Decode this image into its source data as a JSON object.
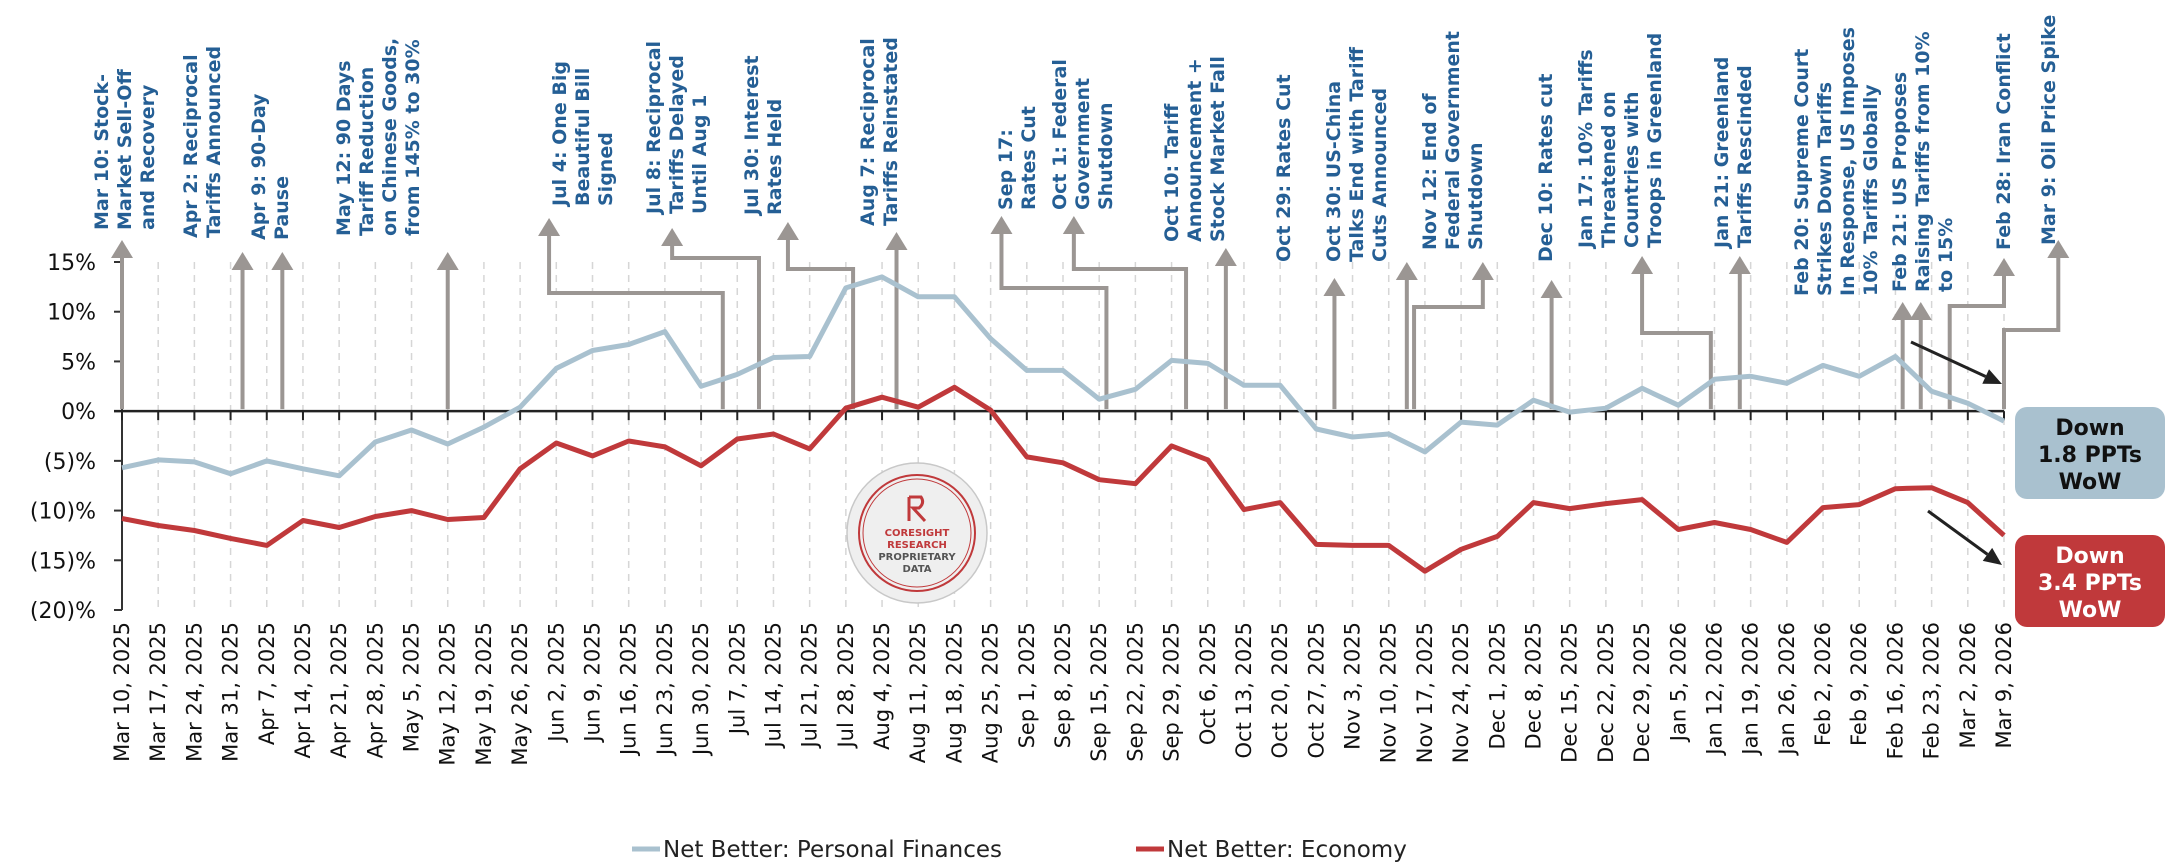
{
  "chart_data": {
    "type": "line",
    "title": "",
    "xlabel": "",
    "ylabel": "",
    "ylim": [
      -20,
      15
    ],
    "yticks": [
      15,
      10,
      5,
      0,
      -5,
      -10,
      -15,
      -20
    ],
    "ytick_labels": [
      "15%",
      "10%",
      "5%",
      "0%",
      "(5)%",
      "(10)%",
      "(15)%",
      "(20)%"
    ],
    "grid": "vertical dashed",
    "legend_position": "bottom-center",
    "x": [
      "Mar 10, 2025",
      "Mar 17, 2025",
      "Mar 24, 2025",
      "Mar 31, 2025",
      "Apr 7, 2025",
      "Apr 14, 2025",
      "Apr 21, 2025",
      "Apr 28, 2025",
      "May 5, 2025",
      "May 12, 2025",
      "May 19, 2025",
      "May 26, 2025",
      "Jun 2, 2025",
      "Jun 9, 2025",
      "Jun 16, 2025",
      "Jun 23, 2025",
      "Jun 30, 2025",
      "Jul 7, 2025",
      "Jul 14, 2025",
      "Jul 21, 2025",
      "Jul 28, 2025",
      "Aug 4, 2025",
      "Aug 11, 2025",
      "Aug 18, 2025",
      "Aug 25, 2025",
      "Sep 1, 2025",
      "Sep 8, 2025",
      "Sep 15, 2025",
      "Sep 22, 2025",
      "Sep 29, 2025",
      "Oct 6, 2025",
      "Oct 13, 2025",
      "Oct 20, 2025",
      "Oct 27, 2025",
      "Nov 3, 2025",
      "Nov 10, 2025",
      "Nov 17, 2025",
      "Nov 24, 2025",
      "Dec 1, 2025",
      "Dec 8, 2025",
      "Dec 15, 2025",
      "Dec 22, 2025",
      "Dec 29, 2025",
      "Jan 5, 2026",
      "Jan 12, 2026",
      "Jan 19, 2026",
      "Jan 26, 2026",
      "Feb 2, 2026",
      "Feb 9, 2026",
      "Feb 16, 2026",
      "Feb 23, 2026",
      "Mar 2, 2026",
      "Mar 9, 2026"
    ],
    "series": [
      {
        "name": "Net Better: Personal Finances",
        "color": "#a9c1cf",
        "values": [
          -5.7,
          -4.9,
          -5.1,
          -6.3,
          -5.0,
          -5.8,
          -6.5,
          -3.1,
          -1.9,
          -3.3,
          -1.6,
          0.4,
          4.3,
          6.1,
          6.7,
          8.0,
          2.5,
          3.7,
          5.4,
          5.5,
          12.4,
          13.5,
          11.5,
          11.5,
          7.3,
          4.1,
          4.1,
          1.2,
          2.2,
          5.1,
          4.8,
          2.6,
          2.6,
          -1.8,
          -2.6,
          -2.3,
          -4.1,
          -1.1,
          -1.4,
          1.1,
          -0.1,
          0.3,
          2.3,
          0.6,
          3.2,
          3.5,
          2.8,
          4.6,
          3.5,
          5.5,
          2.0,
          0.8,
          -1.0
        ]
      },
      {
        "name": "Net Better: Economy",
        "color": "#c0393b",
        "values": [
          -10.8,
          -11.5,
          -12.0,
          -12.8,
          -13.5,
          -11.0,
          -11.7,
          -10.6,
          -10.0,
          -10.9,
          -10.7,
          -5.8,
          -3.2,
          -4.5,
          -3.0,
          -3.6,
          -5.5,
          -2.8,
          -2.3,
          -3.8,
          0.3,
          1.4,
          0.4,
          2.4,
          0.1,
          -4.6,
          -5.2,
          -6.9,
          -7.3,
          -3.5,
          -4.9,
          -9.9,
          -9.2,
          -13.4,
          -13.5,
          -13.5,
          -16.1,
          -13.9,
          -12.6,
          -9.2,
          -9.8,
          -9.3,
          -8.9,
          -11.9,
          -11.2,
          -11.9,
          -13.2,
          -9.7,
          -9.4,
          -7.8,
          -7.7,
          -9.2,
          -12.5
        ]
      }
    ],
    "events": [
      {
        "label": "Mar 10: Stock-Market Sell-Off and Recovery",
        "lines": [
          "Mar 10: Stock-",
          "Market Sell-Off",
          "and Recovery"
        ]
      },
      {
        "label": "Apr 2: Reciprocal Tariffs Announced",
        "lines": [
          "Apr 2: Reciprocal",
          "Tariffs Announced"
        ]
      },
      {
        "label": "Apr 9: 90-Day Pause",
        "lines": [
          "Apr 9: 90-Day",
          "Pause"
        ]
      },
      {
        "label": "May 12: 90 Days Tariff Reduction on Chinese Goods, from 145% to 30%",
        "lines": [
          "May 12: 90 Days",
          "Tariff Reduction",
          "on Chinese Goods,",
          "from 145% to 30%"
        ]
      },
      {
        "label": "Jul 4: One Big Beautiful Bill Signed",
        "lines": [
          "Jul 4: One Big",
          "Beautiful Bill",
          "Signed"
        ]
      },
      {
        "label": "Jul 8: Reciprocal Tariffs Delayed Until Aug 1",
        "lines": [
          "Jul 8: Reciprocal",
          "Tariffs Delayed",
          "Until Aug 1"
        ]
      },
      {
        "label": "Jul 30: Interest Rates Held",
        "lines": [
          "Jul 30: Interest",
          "Rates Held"
        ]
      },
      {
        "label": "Aug 7: Reciprocal Tariffs Reinstated",
        "lines": [
          "Aug 7: Reciprocal",
          "Tariffs Reinstated"
        ]
      },
      {
        "label": "Sep 17: Rates Cut",
        "lines": [
          "Sep 17:",
          "Rates Cut"
        ]
      },
      {
        "label": "Oct 1: Federal Government Shutdown",
        "lines": [
          "Oct 1: Federal",
          "Government",
          "Shutdown"
        ]
      },
      {
        "label": "Oct 10: Tariff Announcement + Stock Market Fall",
        "lines": [
          "Oct 10: Tariff",
          "Announcement +",
          "Stock Market Fall"
        ]
      },
      {
        "label": "Oct 29: Rates Cut",
        "lines": [
          "Oct 29: Rates Cut"
        ]
      },
      {
        "label": "Oct 30: US-China Talks End with Tariff Cuts Announced",
        "lines": [
          "Oct 30: US-China",
          "Talks End with Tariff",
          "Cuts Announced"
        ]
      },
      {
        "label": "Nov 12: End of Federal Government Shutdown",
        "lines": [
          "Nov 12: End of",
          "Federal Government",
          "Shutdown"
        ]
      },
      {
        "label": "Dec 10: Rates cut",
        "lines": [
          "Dec 10: Rates cut"
        ]
      },
      {
        "label": "Jan 17: 10% Tariffs Threatened on Countries with Troops in Greenland",
        "lines": [
          "Jan 17: 10% Tariffs",
          "Threatened on",
          "Countries with",
          "Troops in Greenland"
        ]
      },
      {
        "label": "Jan 21: Greenland Tariffs Rescinded",
        "lines": [
          "Jan 21: Greenland",
          "Tariffs Rescinded"
        ]
      },
      {
        "label": "Feb 20: Supreme Court Strikes Down Tariffs In Response, US Imposes 10% Tariffs Globally",
        "lines": [
          "Feb 20: Supreme Court",
          "Strikes Down Tariffs",
          "In Response, US Imposes",
          "10% Tariffs Globally"
        ]
      },
      {
        "label": "Feb 21: US Proposes Raising Tariffs from 10% to 15%",
        "lines": [
          "Feb 21: US Proposes",
          "Raising Tariffs from 10%",
          "to 15%"
        ]
      },
      {
        "label": "Feb 28: Iran Conflict",
        "lines": [
          "Feb 28: Iran Conflict"
        ]
      },
      {
        "label": "Mar 9: Oil Price Spike",
        "lines": [
          "Mar 9: Oil Price Spike"
        ]
      }
    ],
    "annotations": [
      {
        "series": "Net Better: Personal Finances",
        "lines": [
          "Down",
          "1.8 PPTs",
          "WoW"
        ],
        "change_ppts": -1.8,
        "bg": "#a9c1cf",
        "fg": "#111111"
      },
      {
        "series": "Net Better: Economy",
        "lines": [
          "Down",
          "3.4 PPTs",
          "WoW"
        ],
        "change_ppts": -3.4,
        "bg": "#c0393b",
        "fg": "#ffffff"
      }
    ],
    "watermark": [
      "CORESIGHT",
      "RESEARCH",
      "PROPRIETARY",
      "DATA"
    ]
  }
}
